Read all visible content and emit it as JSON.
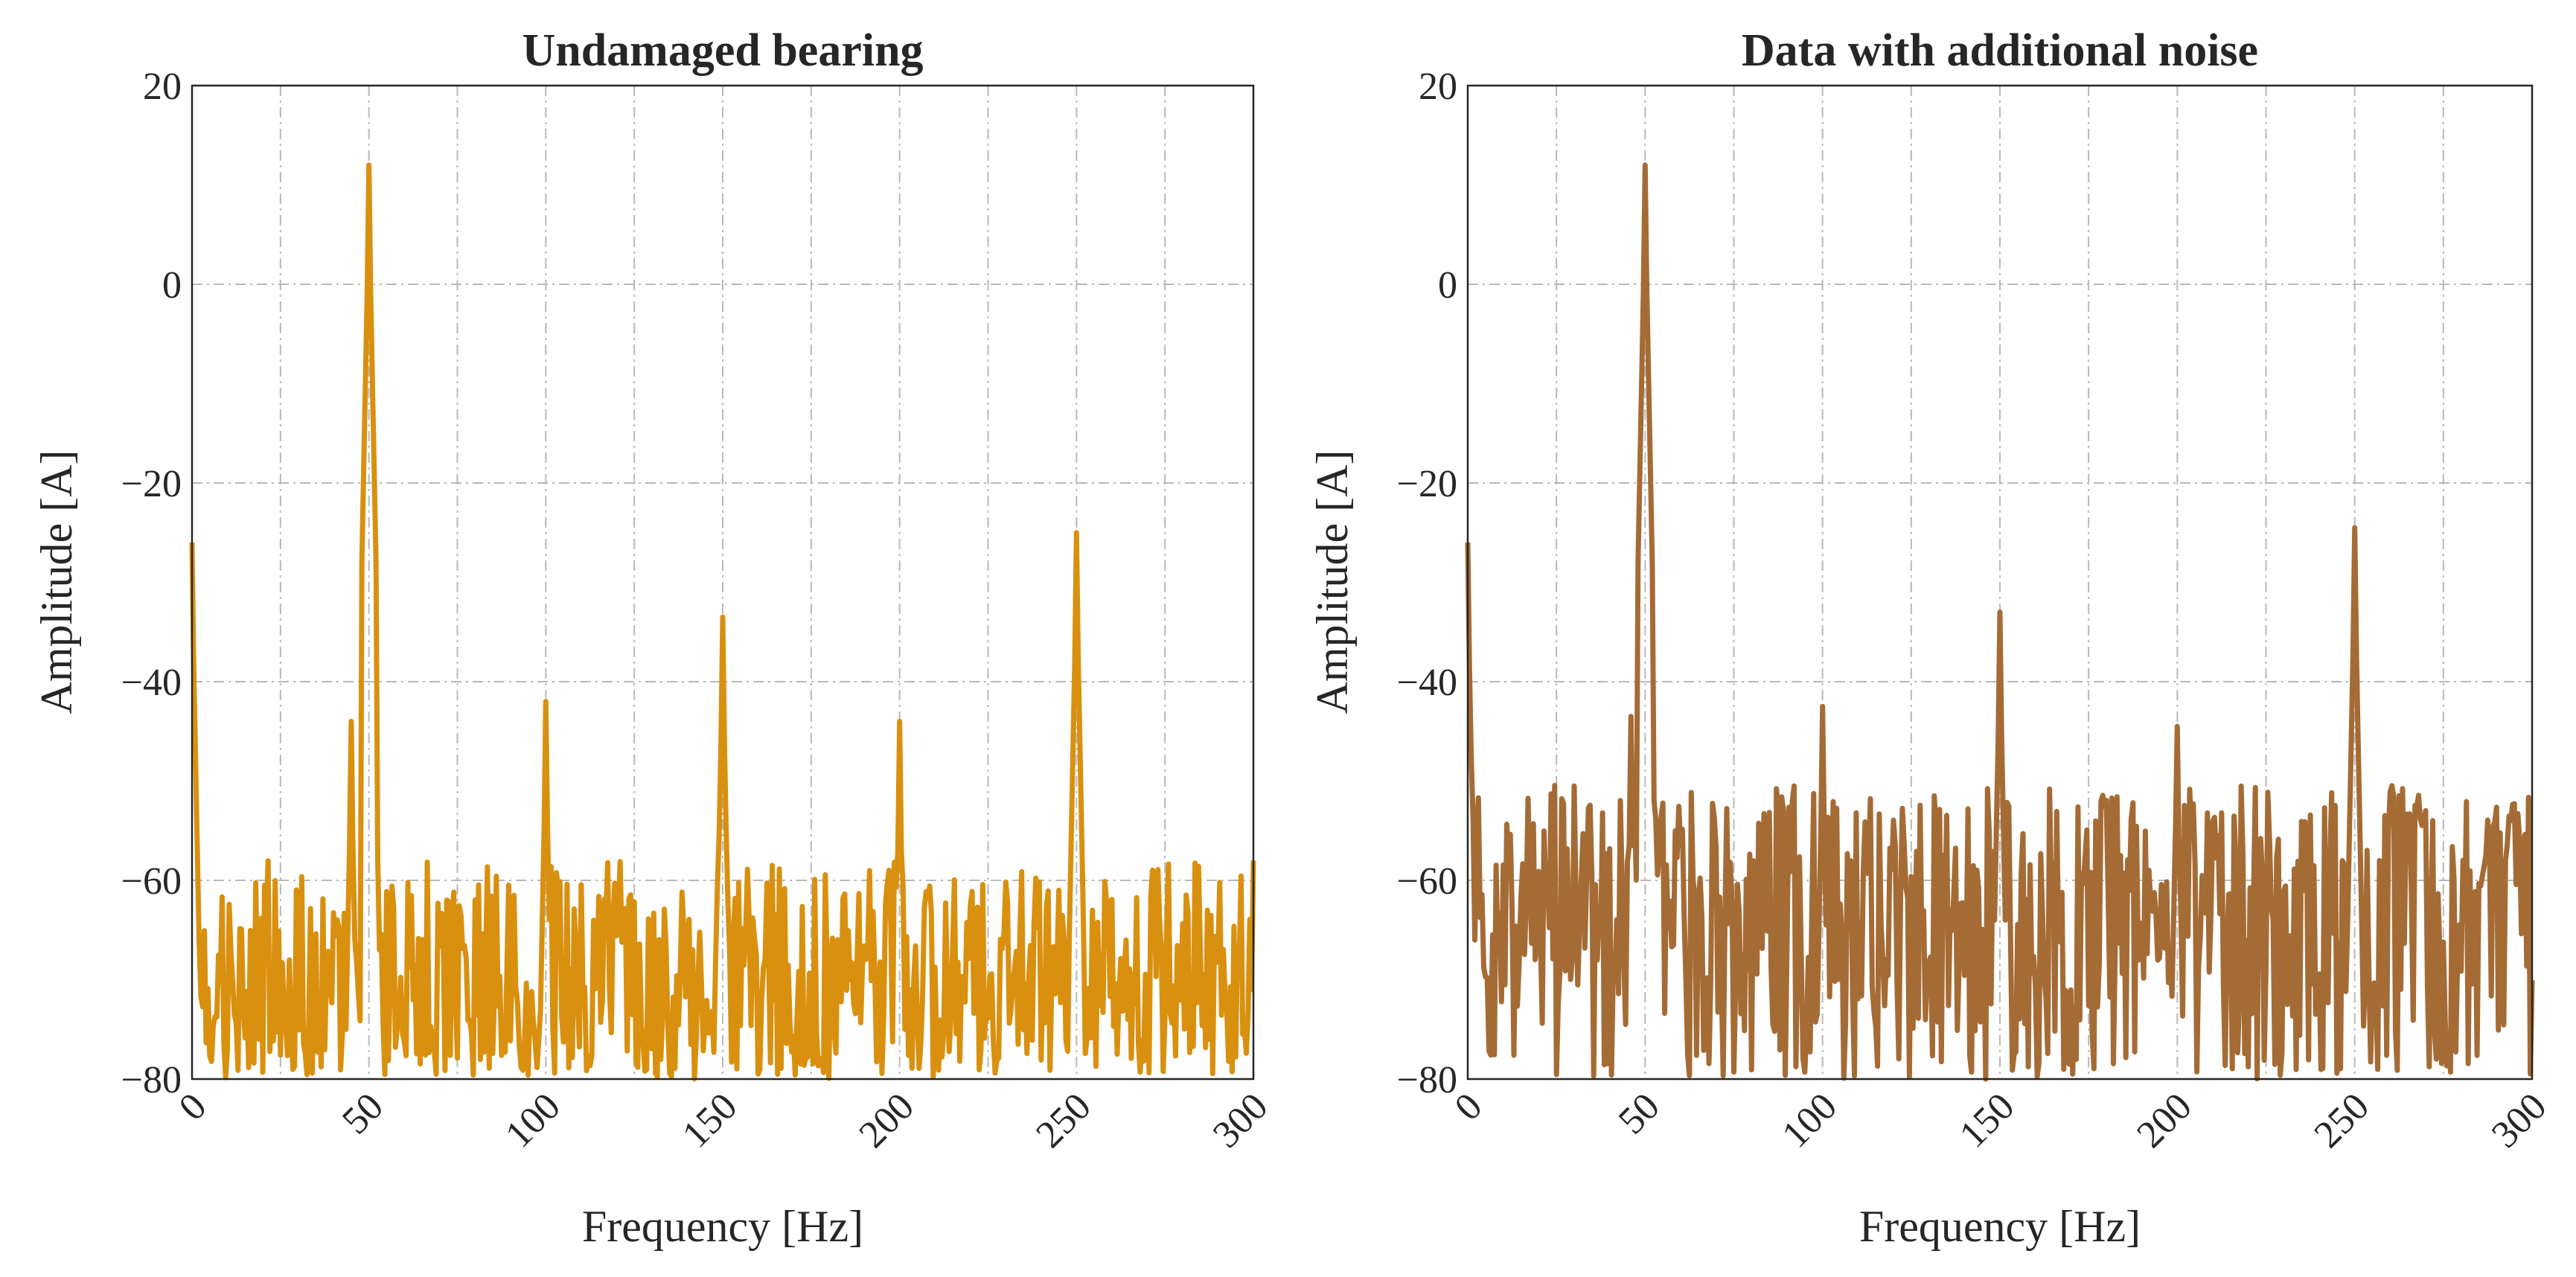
{
  "chart_data": [
    {
      "type": "line",
      "title": "Undamaged bearing",
      "xlabel": "Frequency [Hz]",
      "ylabel": "Amplitude [A]",
      "xlim": [
        0,
        300
      ],
      "ylim": [
        -80,
        20
      ],
      "xticks": [
        "0",
        "50",
        "100",
        "150",
        "200",
        "250",
        "300"
      ],
      "yticks": [
        "−80",
        "−60",
        "−40",
        "−20",
        "0",
        "20"
      ],
      "grid": true,
      "color": "#D9900F",
      "series": [
        {
          "name": "Undamaged bearing",
          "noise_floor": {
            "range_db": [
              -80,
              -58
            ],
            "typical_db": -70
          },
          "peaks": [
            {
              "x": 0,
              "y": -26
            },
            {
              "x": 45,
              "y": -44
            },
            {
              "x": 50,
              "y": 12
            },
            {
              "x": 52,
              "y": -45
            },
            {
              "x": 100,
              "y": -42
            },
            {
              "x": 150,
              "y": -33.5
            },
            {
              "x": 200,
              "y": -44
            },
            {
              "x": 250,
              "y": -25
            },
            {
              "x": 300,
              "y": -58
            }
          ]
        }
      ]
    },
    {
      "type": "line",
      "title": "Data with additional noise",
      "xlabel": "Frequency [Hz]",
      "ylabel": "Amplitude [A]",
      "xlim": [
        0,
        300
      ],
      "ylim": [
        -80,
        20
      ],
      "xticks": [
        "0",
        "50",
        "100",
        "150",
        "200",
        "250",
        "300"
      ],
      "yticks": [
        "−80",
        "−60",
        "−40",
        "−20",
        "0",
        "20"
      ],
      "grid": true,
      "color": "#A56B35",
      "series": [
        {
          "name": "Data with additional noise",
          "noise_floor": {
            "range_db": [
              -80,
              -52
            ],
            "typical_db": -63
          },
          "peaks": [
            {
              "x": 0,
              "y": -26
            },
            {
              "x": 46,
              "y": -43.5
            },
            {
              "x": 50,
              "y": 12
            },
            {
              "x": 100,
              "y": -42.5
            },
            {
              "x": 150,
              "y": -33
            },
            {
              "x": 200,
              "y": -44.5
            },
            {
              "x": 250,
              "y": -24.5
            }
          ]
        }
      ]
    }
  ]
}
